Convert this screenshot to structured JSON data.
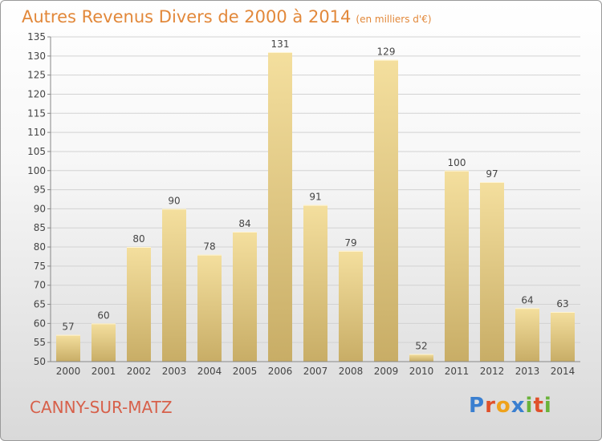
{
  "header": {
    "title": "Autres Revenus Divers de 2000 à 2014",
    "subtitle": "(en milliers d'€)"
  },
  "footer": {
    "town": "CANNY-SUR-MATZ",
    "logo_letters": [
      "P",
      "r",
      "o",
      "x",
      "i",
      "t",
      "i"
    ],
    "logo_colors": [
      "#3a7fd0",
      "#e0502a",
      "#efa21b",
      "#3a7fd0",
      "#6ab33a",
      "#e0502a",
      "#6ab33a"
    ]
  },
  "chart_data": {
    "type": "bar",
    "categories": [
      "2000",
      "2001",
      "2002",
      "2003",
      "2004",
      "2005",
      "2006",
      "2007",
      "2008",
      "2009",
      "2010",
      "2011",
      "2012",
      "2013",
      "2014"
    ],
    "values": [
      57,
      60,
      80,
      90,
      78,
      84,
      131,
      91,
      79,
      129,
      52,
      100,
      97,
      64,
      63
    ],
    "title": "Autres Revenus Divers de 2000 à 2014",
    "ylim": [
      50,
      135
    ],
    "yticks": [
      50,
      55,
      60,
      65,
      70,
      75,
      80,
      85,
      90,
      95,
      100,
      105,
      110,
      115,
      120,
      125,
      130,
      135
    ],
    "grid": true,
    "bar_color_light": "#f4df9e",
    "bar_color_dark": "#c8ad66"
  }
}
